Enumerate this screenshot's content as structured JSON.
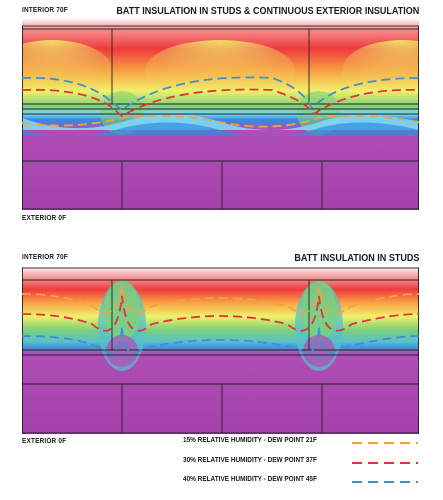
{
  "panels": [
    {
      "title": "BATT INSULATION IN STUDS & CONTINUOUS EXTERIOR INSULATION",
      "interior_label": "INTERIOR 70F",
      "exterior_label": "EXTERIOR 0F"
    },
    {
      "title": "BATT INSULATION IN STUDS",
      "interior_label": "INTERIOR 70F",
      "exterior_label": "EXTERIOR 0F"
    }
  ],
  "legend": [
    {
      "label": "15% RELATIVE HUMIDITY - DEW POINT 21F",
      "color": "#f2a23e"
    },
    {
      "label": "30% RELATIVE HUMIDITY - DEW POINT 37F",
      "color": "#e0343a"
    },
    {
      "label": "40% RELATIVE HUMIDITY - DEW POINT 45F",
      "color": "#3f8fd6"
    }
  ],
  "colors": {
    "red": "#ef3b3b",
    "orange": "#f7a445",
    "yellow": "#f1f06a",
    "green": "#7ed07a",
    "cyan": "#7fd8f2",
    "blue": "#2f8fe0",
    "purple": "#b04db6",
    "purple_dark": "#9a3ea2"
  }
}
